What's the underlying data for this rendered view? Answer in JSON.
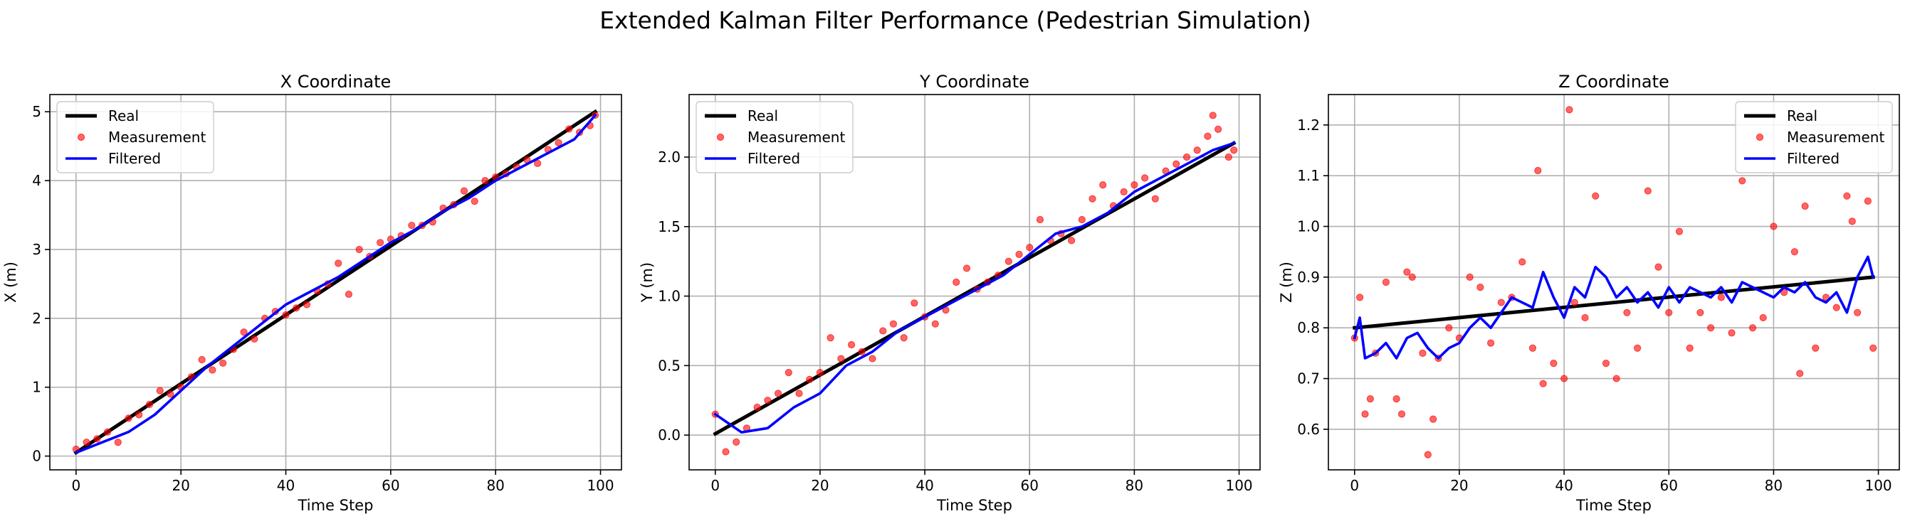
{
  "figure": {
    "suptitle": "Extended Kalman Filter Performance (Pedestrian Simulation)"
  },
  "colors": {
    "real": "#000000",
    "measurement": "#ff0000",
    "filtered": "#0000ff",
    "grid": "#b0b0b0"
  },
  "chart_data": [
    {
      "type": "line",
      "title": "X Coordinate",
      "xlabel": "Time Step",
      "ylabel": "X (m)",
      "xlim": [
        -5,
        104
      ],
      "ylim": [
        -0.2,
        5.25
      ],
      "xticks": [
        0,
        20,
        40,
        60,
        80,
        100
      ],
      "yticks": [
        0,
        1,
        2,
        3,
        4,
        5
      ],
      "legend_position": "upper-left",
      "grid": true,
      "series": [
        {
          "name": "Real",
          "kind": "line",
          "x": [
            0,
            99
          ],
          "y": [
            0.05,
            5.0
          ]
        },
        {
          "name": "Measurement",
          "kind": "scatter",
          "x": [
            0,
            2,
            4,
            6,
            8,
            10,
            12,
            14,
            16,
            18,
            20,
            22,
            24,
            26,
            28,
            30,
            32,
            34,
            36,
            38,
            40,
            42,
            44,
            46,
            48,
            50,
            52,
            54,
            56,
            58,
            60,
            62,
            64,
            66,
            68,
            70,
            72,
            74,
            76,
            78,
            80,
            82,
            84,
            86,
            88,
            90,
            92,
            94,
            96,
            98,
            99
          ],
          "y": [
            0.1,
            0.2,
            0.25,
            0.35,
            0.2,
            0.55,
            0.6,
            0.75,
            0.95,
            0.9,
            1.0,
            1.15,
            1.4,
            1.25,
            1.35,
            1.55,
            1.8,
            1.7,
            2.0,
            2.1,
            2.05,
            2.15,
            2.2,
            2.4,
            2.5,
            2.8,
            2.35,
            3.0,
            2.9,
            3.1,
            3.15,
            3.2,
            3.35,
            3.35,
            3.4,
            3.6,
            3.65,
            3.85,
            3.7,
            4.0,
            4.05,
            4.1,
            4.2,
            4.3,
            4.25,
            4.45,
            4.55,
            4.75,
            4.7,
            4.8,
            4.95
          ]
        },
        {
          "name": "Filtered",
          "kind": "line",
          "x": [
            0,
            5,
            10,
            15,
            20,
            25,
            30,
            35,
            40,
            45,
            50,
            55,
            60,
            65,
            70,
            75,
            80,
            85,
            90,
            95,
            99
          ],
          "y": [
            0.05,
            0.2,
            0.35,
            0.6,
            0.95,
            1.3,
            1.6,
            1.9,
            2.2,
            2.4,
            2.6,
            2.85,
            3.1,
            3.3,
            3.55,
            3.75,
            4.0,
            4.2,
            4.4,
            4.6,
            4.95
          ]
        }
      ]
    },
    {
      "type": "line",
      "title": "Y Coordinate",
      "xlabel": "Time Step",
      "ylabel": "Y (m)",
      "xlim": [
        -5,
        104
      ],
      "ylim": [
        -0.25,
        2.45
      ],
      "xticks": [
        0,
        20,
        40,
        60,
        80,
        100
      ],
      "yticks": [
        0.0,
        0.5,
        1.0,
        1.5,
        2.0
      ],
      "legend_position": "upper-left",
      "grid": true,
      "series": [
        {
          "name": "Real",
          "kind": "line",
          "x": [
            0,
            99
          ],
          "y": [
            0.01,
            2.1
          ]
        },
        {
          "name": "Measurement",
          "kind": "scatter",
          "x": [
            0,
            2,
            4,
            6,
            8,
            10,
            12,
            14,
            16,
            18,
            20,
            22,
            24,
            26,
            28,
            30,
            32,
            34,
            36,
            38,
            40,
            42,
            44,
            46,
            48,
            50,
            52,
            54,
            56,
            58,
            60,
            62,
            64,
            66,
            68,
            70,
            72,
            74,
            76,
            78,
            80,
            82,
            84,
            86,
            88,
            90,
            92,
            94,
            95,
            96,
            98,
            99
          ],
          "y": [
            0.15,
            -0.12,
            -0.05,
            0.05,
            0.2,
            0.25,
            0.3,
            0.45,
            0.3,
            0.4,
            0.45,
            0.7,
            0.55,
            0.65,
            0.6,
            0.55,
            0.75,
            0.8,
            0.7,
            0.95,
            0.85,
            0.8,
            0.9,
            1.1,
            1.2,
            1.05,
            1.1,
            1.15,
            1.25,
            1.3,
            1.35,
            1.55,
            1.4,
            1.45,
            1.4,
            1.55,
            1.7,
            1.8,
            1.65,
            1.75,
            1.8,
            1.85,
            1.7,
            1.9,
            1.95,
            2.0,
            2.05,
            2.15,
            2.3,
            2.2,
            2.0,
            2.05
          ]
        },
        {
          "name": "Filtered",
          "kind": "line",
          "x": [
            0,
            5,
            10,
            15,
            20,
            25,
            30,
            35,
            40,
            45,
            50,
            55,
            60,
            65,
            70,
            75,
            80,
            85,
            90,
            95,
            99
          ],
          "y": [
            0.15,
            0.02,
            0.05,
            0.2,
            0.3,
            0.5,
            0.6,
            0.75,
            0.85,
            0.95,
            1.05,
            1.15,
            1.3,
            1.45,
            1.5,
            1.6,
            1.75,
            1.85,
            1.95,
            2.05,
            2.1
          ]
        }
      ]
    },
    {
      "type": "line",
      "title": "Z Coordinate",
      "xlabel": "Time Step",
      "ylabel": "Z (m)",
      "xlim": [
        -5,
        104
      ],
      "ylim": [
        0.52,
        1.26
      ],
      "xticks": [
        0,
        20,
        40,
        60,
        80,
        100
      ],
      "yticks": [
        0.6,
        0.7,
        0.8,
        0.9,
        1.0,
        1.1,
        1.2
      ],
      "legend_position": "upper-right",
      "grid": true,
      "series": [
        {
          "name": "Real",
          "kind": "line",
          "x": [
            0,
            99
          ],
          "y": [
            0.8,
            0.9
          ]
        },
        {
          "name": "Measurement",
          "kind": "scatter",
          "x": [
            0,
            1,
            2,
            3,
            4,
            6,
            8,
            9,
            10,
            11,
            13,
            14,
            15,
            16,
            18,
            20,
            22,
            24,
            26,
            28,
            30,
            32,
            34,
            35,
            36,
            38,
            40,
            41,
            42,
            44,
            46,
            48,
            50,
            52,
            54,
            56,
            58,
            60,
            62,
            64,
            66,
            68,
            70,
            72,
            74,
            76,
            78,
            80,
            82,
            84,
            85,
            86,
            88,
            90,
            92,
            94,
            95,
            96,
            98,
            99
          ],
          "y": [
            0.78,
            0.86,
            0.63,
            0.66,
            0.75,
            0.89,
            0.66,
            0.63,
            0.91,
            0.9,
            0.75,
            0.55,
            0.62,
            0.74,
            0.8,
            0.78,
            0.9,
            0.88,
            0.77,
            0.85,
            0.86,
            0.93,
            0.76,
            1.11,
            0.69,
            0.73,
            0.7,
            1.23,
            0.85,
            0.82,
            1.06,
            0.73,
            0.7,
            0.83,
            0.76,
            1.07,
            0.92,
            0.83,
            0.99,
            0.76,
            0.83,
            0.8,
            0.86,
            0.79,
            1.09,
            0.8,
            0.82,
            1.0,
            0.87,
            0.95,
            0.71,
            1.04,
            0.76,
            0.86,
            0.84,
            1.06,
            1.01,
            0.83,
            1.05,
            0.76
          ]
        },
        {
          "name": "Filtered",
          "kind": "line",
          "x": [
            0,
            1,
            2,
            4,
            6,
            8,
            10,
            12,
            14,
            16,
            18,
            20,
            22,
            24,
            26,
            28,
            30,
            32,
            34,
            36,
            38,
            40,
            42,
            44,
            46,
            48,
            50,
            52,
            54,
            56,
            58,
            60,
            62,
            64,
            66,
            68,
            70,
            72,
            74,
            76,
            78,
            80,
            82,
            84,
            86,
            88,
            90,
            92,
            94,
            96,
            98,
            99
          ],
          "y": [
            0.78,
            0.82,
            0.74,
            0.75,
            0.77,
            0.74,
            0.78,
            0.79,
            0.76,
            0.74,
            0.76,
            0.77,
            0.8,
            0.82,
            0.8,
            0.83,
            0.86,
            0.85,
            0.84,
            0.91,
            0.86,
            0.82,
            0.88,
            0.86,
            0.92,
            0.9,
            0.86,
            0.88,
            0.85,
            0.87,
            0.84,
            0.88,
            0.85,
            0.88,
            0.87,
            0.86,
            0.88,
            0.85,
            0.89,
            0.88,
            0.87,
            0.86,
            0.88,
            0.87,
            0.89,
            0.86,
            0.85,
            0.87,
            0.83,
            0.9,
            0.94,
            0.9
          ]
        }
      ]
    }
  ]
}
